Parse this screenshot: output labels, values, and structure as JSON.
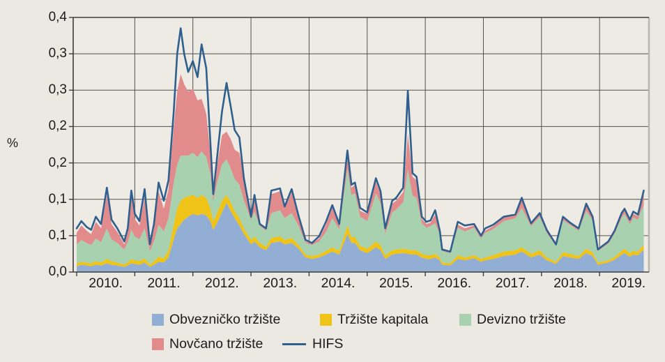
{
  "figure": {
    "background_color": "#ece9e2",
    "plot_background_color": "#eeebe4",
    "grid_color": "#4f4f4f",
    "border_color": "#3c3c3c",
    "right_border_color": "#b8b6b1",
    "text_color": "#1c1c1c"
  },
  "chart_data": {
    "type": "area",
    "stacked": true,
    "title": "",
    "xlabel": "",
    "ylabel": "%",
    "ylim": [
      0,
      0.35
    ],
    "ytick_step": 0.05,
    "ytick_labels_top_to_bottom": [
      "0,4",
      "0,3",
      "0,3",
      "0,2",
      "0,2",
      "0,1",
      "0,1",
      "0,0"
    ],
    "xtick_labels": [
      "2010.",
      "2011.",
      "2012.",
      "2013.",
      "2014.",
      "2015.",
      "2016.",
      "2017.",
      "2018.",
      "2019."
    ],
    "x_domain": [
      2009.94,
      2019.85
    ],
    "grid": true,
    "legend_position": "bottom",
    "series": [
      {
        "id": "bond-market",
        "name": "Obvezničko tržište",
        "type": "area",
        "color": "#93aed4"
      },
      {
        "id": "capital-market",
        "name": "Tržište kapitala",
        "type": "area",
        "color": "#efc318"
      },
      {
        "id": "fx-market",
        "name": "Devizno tržište",
        "type": "area",
        "color": "#a8d1af"
      },
      {
        "id": "money-market",
        "name": "Novčano tržište",
        "type": "area",
        "color": "#e18b8c"
      },
      {
        "id": "hifs",
        "name": "HIFS",
        "type": "line",
        "color": "#2f5f8c"
      }
    ],
    "point_format": [
      "year_decimal",
      "bond-market",
      "capital-market",
      "fx-market",
      "money-market",
      "hifs"
    ],
    "points": [
      [
        2010.0,
        0.008,
        0.004,
        0.026,
        0.016,
        0.06
      ],
      [
        2010.08,
        0.01,
        0.004,
        0.03,
        0.02,
        0.07
      ],
      [
        2010.17,
        0.009,
        0.004,
        0.027,
        0.017,
        0.062
      ],
      [
        2010.25,
        0.008,
        0.004,
        0.025,
        0.015,
        0.058
      ],
      [
        2010.33,
        0.01,
        0.005,
        0.031,
        0.023,
        0.076
      ],
      [
        2010.42,
        0.009,
        0.004,
        0.028,
        0.019,
        0.066
      ],
      [
        2010.52,
        0.012,
        0.006,
        0.042,
        0.046,
        0.116
      ],
      [
        2010.6,
        0.01,
        0.005,
        0.03,
        0.021,
        0.072
      ],
      [
        2010.7,
        0.009,
        0.004,
        0.027,
        0.015,
        0.06
      ],
      [
        2010.82,
        0.007,
        0.003,
        0.021,
        0.007,
        0.042
      ],
      [
        2010.88,
        0.009,
        0.004,
        0.028,
        0.014,
        0.06
      ],
      [
        2010.94,
        0.012,
        0.006,
        0.04,
        0.044,
        0.112
      ],
      [
        2011.0,
        0.011,
        0.005,
        0.033,
        0.024,
        0.08
      ],
      [
        2011.08,
        0.01,
        0.005,
        0.03,
        0.019,
        0.07
      ],
      [
        2011.17,
        0.013,
        0.006,
        0.041,
        0.042,
        0.114
      ],
      [
        2011.26,
        0.007,
        0.003,
        0.019,
        0.005,
        0.038
      ],
      [
        2011.33,
        0.01,
        0.005,
        0.027,
        0.016,
        0.066
      ],
      [
        2011.41,
        0.014,
        0.007,
        0.044,
        0.046,
        0.123
      ],
      [
        2011.5,
        0.013,
        0.006,
        0.037,
        0.031,
        0.098
      ],
      [
        2011.58,
        0.02,
        0.01,
        0.044,
        0.04,
        0.126
      ],
      [
        2011.67,
        0.045,
        0.02,
        0.058,
        0.075,
        0.22
      ],
      [
        2011.73,
        0.06,
        0.028,
        0.06,
        0.1,
        0.3
      ],
      [
        2011.79,
        0.066,
        0.032,
        0.062,
        0.112,
        0.335
      ],
      [
        2011.85,
        0.072,
        0.03,
        0.058,
        0.098,
        0.3
      ],
      [
        2011.92,
        0.076,
        0.028,
        0.056,
        0.088,
        0.275
      ],
      [
        2012.0,
        0.08,
        0.026,
        0.058,
        0.088,
        0.29
      ],
      [
        2012.08,
        0.078,
        0.024,
        0.056,
        0.078,
        0.268
      ],
      [
        2012.15,
        0.08,
        0.026,
        0.06,
        0.072,
        0.313
      ],
      [
        2012.23,
        0.078,
        0.024,
        0.056,
        0.06,
        0.28
      ],
      [
        2012.3,
        0.07,
        0.018,
        0.048,
        0.028,
        0.18
      ],
      [
        2012.35,
        0.058,
        0.012,
        0.028,
        0.005,
        0.107
      ],
      [
        2012.42,
        0.068,
        0.014,
        0.042,
        0.024,
        0.16
      ],
      [
        2012.5,
        0.082,
        0.016,
        0.05,
        0.04,
        0.22
      ],
      [
        2012.58,
        0.095,
        0.011,
        0.049,
        0.038,
        0.26
      ],
      [
        2012.65,
        0.084,
        0.012,
        0.047,
        0.04,
        0.228
      ],
      [
        2012.72,
        0.074,
        0.01,
        0.044,
        0.04,
        0.195
      ],
      [
        2012.8,
        0.064,
        0.01,
        0.046,
        0.044,
        0.185
      ],
      [
        2012.88,
        0.052,
        0.008,
        0.038,
        0.032,
        0.128
      ],
      [
        2013.0,
        0.038,
        0.006,
        0.028,
        0.006,
        0.076
      ],
      [
        2013.06,
        0.042,
        0.007,
        0.034,
        0.02,
        0.106
      ],
      [
        2013.15,
        0.034,
        0.006,
        0.024,
        0.004,
        0.066
      ],
      [
        2013.26,
        0.03,
        0.005,
        0.022,
        0.004,
        0.06
      ],
      [
        2013.35,
        0.04,
        0.007,
        0.034,
        0.026,
        0.112
      ],
      [
        2013.5,
        0.042,
        0.007,
        0.036,
        0.026,
        0.115
      ],
      [
        2013.58,
        0.038,
        0.006,
        0.03,
        0.014,
        0.09
      ],
      [
        2013.7,
        0.04,
        0.007,
        0.034,
        0.028,
        0.114
      ],
      [
        2013.82,
        0.032,
        0.005,
        0.026,
        0.012,
        0.077
      ],
      [
        2013.94,
        0.02,
        0.004,
        0.016,
        0.002,
        0.044
      ],
      [
        2014.05,
        0.018,
        0.004,
        0.015,
        0.002,
        0.04
      ],
      [
        2014.17,
        0.02,
        0.004,
        0.018,
        0.004,
        0.049
      ],
      [
        2014.29,
        0.024,
        0.005,
        0.026,
        0.01,
        0.069
      ],
      [
        2014.4,
        0.028,
        0.006,
        0.04,
        0.014,
        0.092
      ],
      [
        2014.52,
        0.024,
        0.005,
        0.03,
        0.005,
        0.066
      ],
      [
        2014.66,
        0.052,
        0.012,
        0.078,
        0.014,
        0.167
      ],
      [
        2014.73,
        0.04,
        0.008,
        0.058,
        0.01,
        0.12
      ],
      [
        2014.79,
        0.04,
        0.008,
        0.06,
        0.012,
        0.123
      ],
      [
        2014.88,
        0.03,
        0.006,
        0.04,
        0.008,
        0.088
      ],
      [
        2015.0,
        0.026,
        0.006,
        0.038,
        0.01,
        0.082
      ],
      [
        2015.15,
        0.034,
        0.008,
        0.066,
        0.016,
        0.129
      ],
      [
        2015.23,
        0.03,
        0.007,
        0.058,
        0.012,
        0.111
      ],
      [
        2015.31,
        0.018,
        0.005,
        0.03,
        0.004,
        0.06
      ],
      [
        2015.43,
        0.024,
        0.006,
        0.052,
        0.012,
        0.098
      ],
      [
        2015.5,
        0.025,
        0.006,
        0.055,
        0.012,
        0.102
      ],
      [
        2015.62,
        0.026,
        0.006,
        0.064,
        0.014,
        0.116
      ],
      [
        2015.7,
        0.025,
        0.006,
        0.11,
        0.048,
        0.249
      ],
      [
        2015.78,
        0.024,
        0.006,
        0.075,
        0.026,
        0.136
      ],
      [
        2015.85,
        0.024,
        0.006,
        0.072,
        0.024,
        0.131
      ],
      [
        2015.94,
        0.02,
        0.005,
        0.042,
        0.006,
        0.076
      ],
      [
        2016.02,
        0.018,
        0.005,
        0.038,
        0.005,
        0.069
      ],
      [
        2016.09,
        0.018,
        0.005,
        0.04,
        0.005,
        0.071
      ],
      [
        2016.17,
        0.02,
        0.005,
        0.042,
        0.012,
        0.085
      ],
      [
        2016.25,
        0.016,
        0.004,
        0.032,
        0.003,
        0.057
      ],
      [
        2016.29,
        0.01,
        0.003,
        0.016,
        0.001,
        0.031
      ],
      [
        2016.43,
        0.009,
        0.003,
        0.014,
        0.001,
        0.028
      ],
      [
        2016.56,
        0.018,
        0.005,
        0.038,
        0.004,
        0.069
      ],
      [
        2016.68,
        0.016,
        0.004,
        0.036,
        0.004,
        0.064
      ],
      [
        2016.84,
        0.019,
        0.004,
        0.038,
        0.003,
        0.066
      ],
      [
        2016.96,
        0.014,
        0.004,
        0.028,
        0.002,
        0.05
      ],
      [
        2017.03,
        0.016,
        0.004,
        0.034,
        0.003,
        0.06
      ],
      [
        2017.17,
        0.018,
        0.005,
        0.036,
        0.004,
        0.065
      ],
      [
        2017.35,
        0.022,
        0.006,
        0.042,
        0.005,
        0.076
      ],
      [
        2017.55,
        0.024,
        0.006,
        0.044,
        0.004,
        0.079
      ],
      [
        2017.66,
        0.028,
        0.006,
        0.054,
        0.012,
        0.102
      ],
      [
        2017.82,
        0.02,
        0.005,
        0.038,
        0.003,
        0.067
      ],
      [
        2017.97,
        0.024,
        0.006,
        0.046,
        0.004,
        0.081
      ],
      [
        2018.09,
        0.016,
        0.004,
        0.034,
        0.003,
        0.058
      ],
      [
        2018.25,
        0.011,
        0.003,
        0.022,
        0.002,
        0.038
      ],
      [
        2018.37,
        0.022,
        0.005,
        0.044,
        0.004,
        0.076
      ],
      [
        2018.49,
        0.02,
        0.005,
        0.04,
        0.003,
        0.068
      ],
      [
        2018.64,
        0.018,
        0.004,
        0.035,
        0.003,
        0.06
      ],
      [
        2018.77,
        0.026,
        0.006,
        0.052,
        0.008,
        0.094
      ],
      [
        2018.88,
        0.022,
        0.005,
        0.044,
        0.004,
        0.076
      ],
      [
        2018.97,
        0.01,
        0.003,
        0.016,
        0.001,
        0.031
      ],
      [
        2019.15,
        0.013,
        0.003,
        0.023,
        0.002,
        0.042
      ],
      [
        2019.26,
        0.017,
        0.004,
        0.032,
        0.003,
        0.057
      ],
      [
        2019.38,
        0.024,
        0.005,
        0.046,
        0.005,
        0.081
      ],
      [
        2019.43,
        0.026,
        0.006,
        0.048,
        0.006,
        0.087
      ],
      [
        2019.52,
        0.021,
        0.005,
        0.04,
        0.004,
        0.072
      ],
      [
        2019.58,
        0.024,
        0.005,
        0.046,
        0.005,
        0.083
      ],
      [
        2019.66,
        0.023,
        0.005,
        0.044,
        0.005,
        0.079
      ],
      [
        2019.71,
        0.027,
        0.006,
        0.05,
        0.008,
        0.095
      ],
      [
        2019.76,
        0.03,
        0.007,
        0.055,
        0.016,
        0.112
      ]
    ]
  },
  "legend": {
    "rows": [
      [
        "bond-market",
        "capital-market",
        "fx-market"
      ],
      [
        "money-market",
        "hifs"
      ]
    ]
  }
}
